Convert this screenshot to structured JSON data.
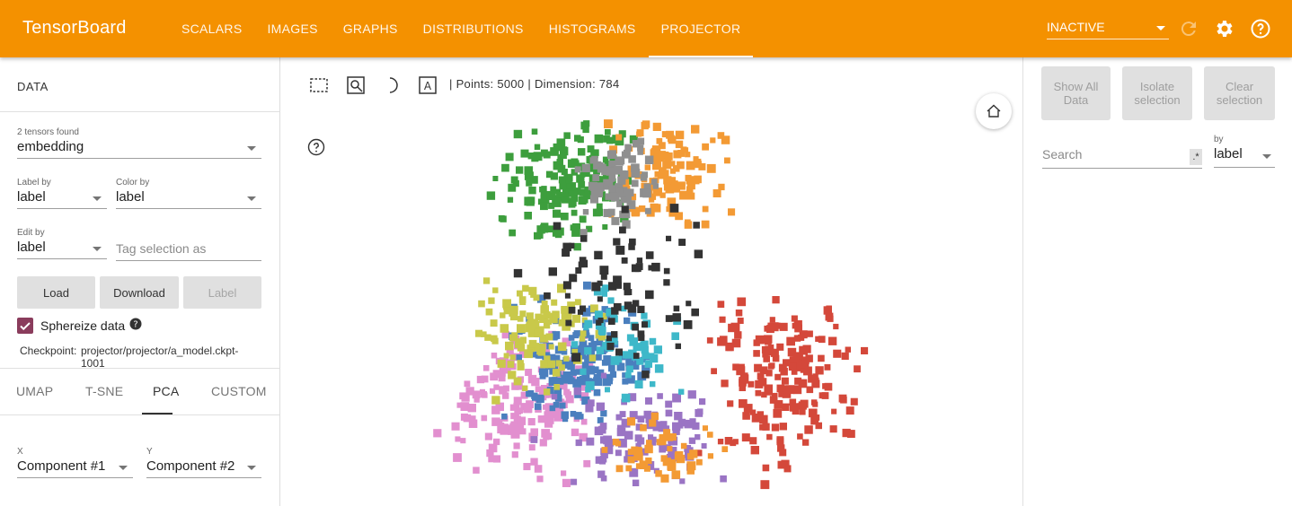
{
  "header": {
    "brand": "TensorBoard",
    "tabs": [
      {
        "label": "SCALARS"
      },
      {
        "label": "IMAGES"
      },
      {
        "label": "GRAPHS"
      },
      {
        "label": "DISTRIBUTIONS"
      },
      {
        "label": "HISTOGRAMS"
      },
      {
        "label": "PROJECTOR"
      }
    ],
    "active_tab": "PROJECTOR",
    "run_status": "INACTIVE",
    "icons": [
      "refresh-icon",
      "gear-icon",
      "help-icon"
    ]
  },
  "data_panel": {
    "title": "DATA",
    "tensors_found": "2 tensors found",
    "tensor_value": "embedding",
    "label_by": {
      "label": "Label by",
      "value": "label"
    },
    "color_by": {
      "label": "Color by",
      "value": "label"
    },
    "edit_by": {
      "label": "Edit by",
      "value": "label"
    },
    "tag_placeholder": "Tag selection as",
    "buttons": {
      "load": "Load",
      "download": "Download",
      "label": "Label"
    },
    "sphereize": {
      "label": "Sphereize data",
      "checked": true
    },
    "checkpoint": {
      "key": "Checkpoint:",
      "value": "projector/projector/a_model.ckpt-1001"
    }
  },
  "projection_panel": {
    "tabs": [
      "UMAP",
      "T-SNE",
      "PCA",
      "CUSTOM"
    ],
    "active_tab": "PCA",
    "x": {
      "label": "X",
      "value": "Component #1"
    },
    "y": {
      "label": "Y",
      "value": "Component #2"
    }
  },
  "center": {
    "points_info": "| Points: 5000 | Dimension: 784",
    "toolbar_icons": [
      "select-rectangle-icon",
      "zoom-box-icon",
      "night-mode-icon",
      "label-mode-icon"
    ],
    "colors": {
      "orange": "#f39a34",
      "green": "#3d9e3d",
      "gray": "#8f8f8f",
      "red": "#d4483a",
      "pink": "#e28fcf",
      "blue": "#4a7fbe",
      "yellow": "#c9c94a",
      "purple": "#9a74c4",
      "teal": "#3eb8c9",
      "black": "#333333"
    }
  },
  "inspector": {
    "show_all": "Show All Data",
    "isolate": "Isolate selection",
    "clear": "Clear selection",
    "search_placeholder": "Search",
    "regex_label": ".*",
    "by_label": "by",
    "by_value": "label"
  }
}
